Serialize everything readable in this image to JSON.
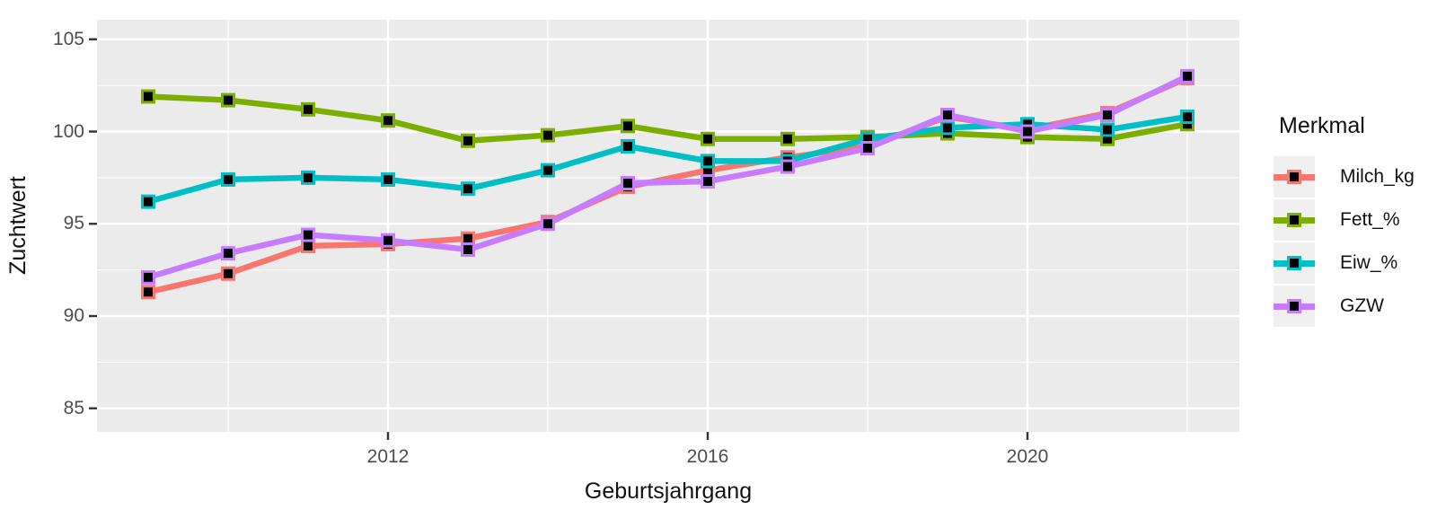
{
  "figure": {
    "y_axis_title": "Zuchtwert",
    "x_axis_title": "Geburtsjahrgang",
    "legend_title": "Merkmal"
  },
  "chart_data": {
    "type": "line",
    "title": "",
    "xlabel": "Geburtsjahrgang",
    "ylabel": "Zuchtwert",
    "legend_title": "Merkmal",
    "legend_position": "right",
    "grid": true,
    "style": "ggplot-gray-panel",
    "panel_bg": "#EBEBEB",
    "grid_color": "#FFFFFF",
    "tick_color": "#333333",
    "tick_label_color": "#4D4D4D",
    "marker": "black-square-with-colored-border",
    "x": [
      2009,
      2010,
      2011,
      2012,
      2013,
      2014,
      2015,
      2016,
      2017,
      2018,
      2019,
      2020,
      2021,
      2022
    ],
    "x_ticks": [
      2012,
      2016,
      2020
    ],
    "x_minor_ticks": [
      2010,
      2014,
      2018,
      2022
    ],
    "y_ticks": [
      85,
      90,
      95,
      100,
      105
    ],
    "y_minor_ticks": [
      87.5,
      92.5,
      97.5,
      102.5
    ],
    "xlim": [
      2008.35,
      2022.65
    ],
    "ylim": [
      83.7,
      106.1
    ],
    "series": [
      {
        "name": "Milch_kg",
        "color": "#F8766D",
        "values": [
          91.3,
          92.3,
          93.8,
          93.9,
          94.2,
          95.1,
          97.0,
          97.9,
          98.6,
          99.2,
          100.8,
          100.1,
          101.0,
          102.9
        ]
      },
      {
        "name": "Fett_%",
        "color": "#7CAE00",
        "values": [
          101.9,
          101.7,
          101.2,
          100.6,
          99.5,
          99.8,
          100.3,
          99.6,
          99.6,
          99.7,
          99.9,
          99.7,
          99.6,
          100.4
        ]
      },
      {
        "name": "Eiw_%",
        "color": "#00BFC4",
        "values": [
          96.2,
          97.4,
          97.5,
          97.4,
          96.9,
          97.9,
          99.2,
          98.4,
          98.4,
          99.6,
          100.2,
          100.4,
          100.1,
          100.8
        ]
      },
      {
        "name": "GZW",
        "color": "#C77CFF",
        "values": [
          92.1,
          93.4,
          94.4,
          94.1,
          93.6,
          95.0,
          97.2,
          97.3,
          98.1,
          99.1,
          100.9,
          100.0,
          100.9,
          103.0
        ]
      }
    ]
  }
}
